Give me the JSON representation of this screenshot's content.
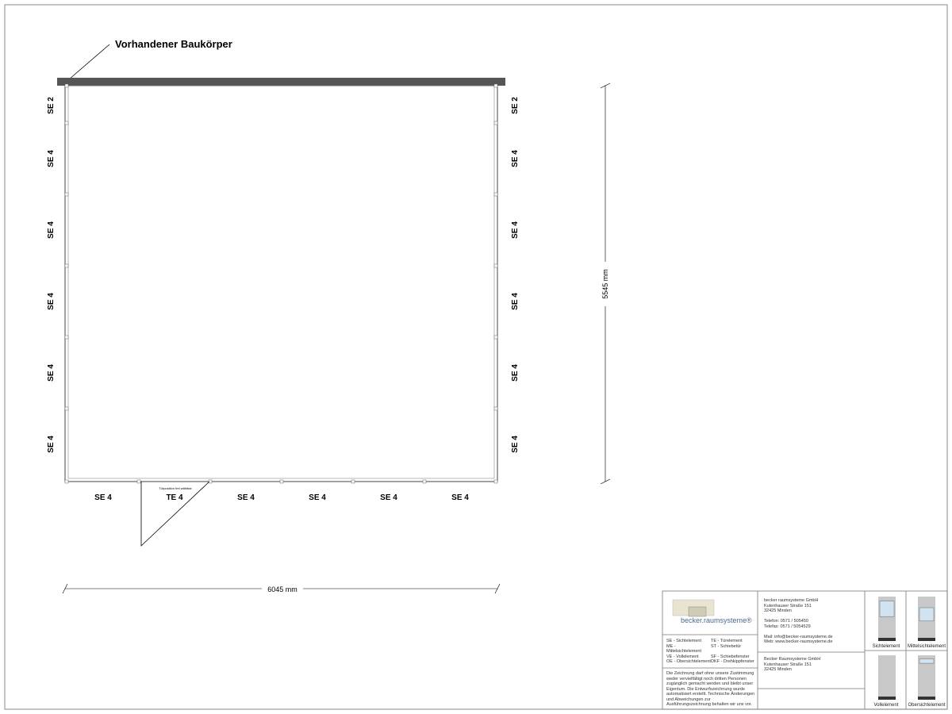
{
  "annotation": "Vorhandener Baukörper",
  "left_elements": [
    "SE 2",
    "SE 4",
    "SE 4",
    "SE 4",
    "SE 4",
    "SE 4"
  ],
  "right_elements": [
    "SE 2",
    "SE 4",
    "SE 4",
    "SE 4",
    "SE 4",
    "SE 4"
  ],
  "bottom_elements": [
    "SE 4",
    "TE 4",
    "SE 4",
    "SE 4",
    "SE 4",
    "SE 4"
  ],
  "door_note": "Türposition frei wählbar",
  "width_dimension": "6045 mm",
  "depth_dimension": "5545 mm",
  "title_block": {
    "logo_text": "becker.raumsysteme®",
    "legend": [
      [
        "SE - Sichtelement",
        "TE - Türelement"
      ],
      [
        "ME - Mittelsichtelement",
        "ST - Schiebetür"
      ],
      [
        "VE - Vollelement",
        "SF - Schiebefenster"
      ],
      [
        "OE - Obersichtelement",
        "DKF - Drehkippfenster"
      ]
    ],
    "disclaimer": "Die Zeichnung darf ohne unsere Zustimmung weder vervielfältigt noch dritten Personen zugänglich gemacht werden und bleibt unser Eigentum. Die Entwurfszeichnung wurde automatisiert erstellt. Technische Änderungen und Abweichungen zur Ausführungszeichnung behalten wir uns vor.",
    "company": [
      "becker raumsysteme GmbH",
      "Kutenhauser Straße 151",
      "32425 Minden"
    ],
    "phone": [
      "Telefon: 0571 / 505450",
      "Telefax: 0571 / 5054529"
    ],
    "web": [
      "Mail: info@becker-raumsysteme.de",
      "Web: www.becker-raumsysteme.de"
    ],
    "client": [
      "Becker Raumsysteme GmbH",
      "Kutenhauser Straße 151",
      "32425 Minden"
    ],
    "element_types": [
      "Sichtelement",
      "Mittelsichtelement",
      "Vollelement",
      "Obersichtelement"
    ]
  },
  "colors": {
    "wall": "#555555",
    "glass": "#cfe3f2",
    "panel": "#c8c8c8"
  }
}
